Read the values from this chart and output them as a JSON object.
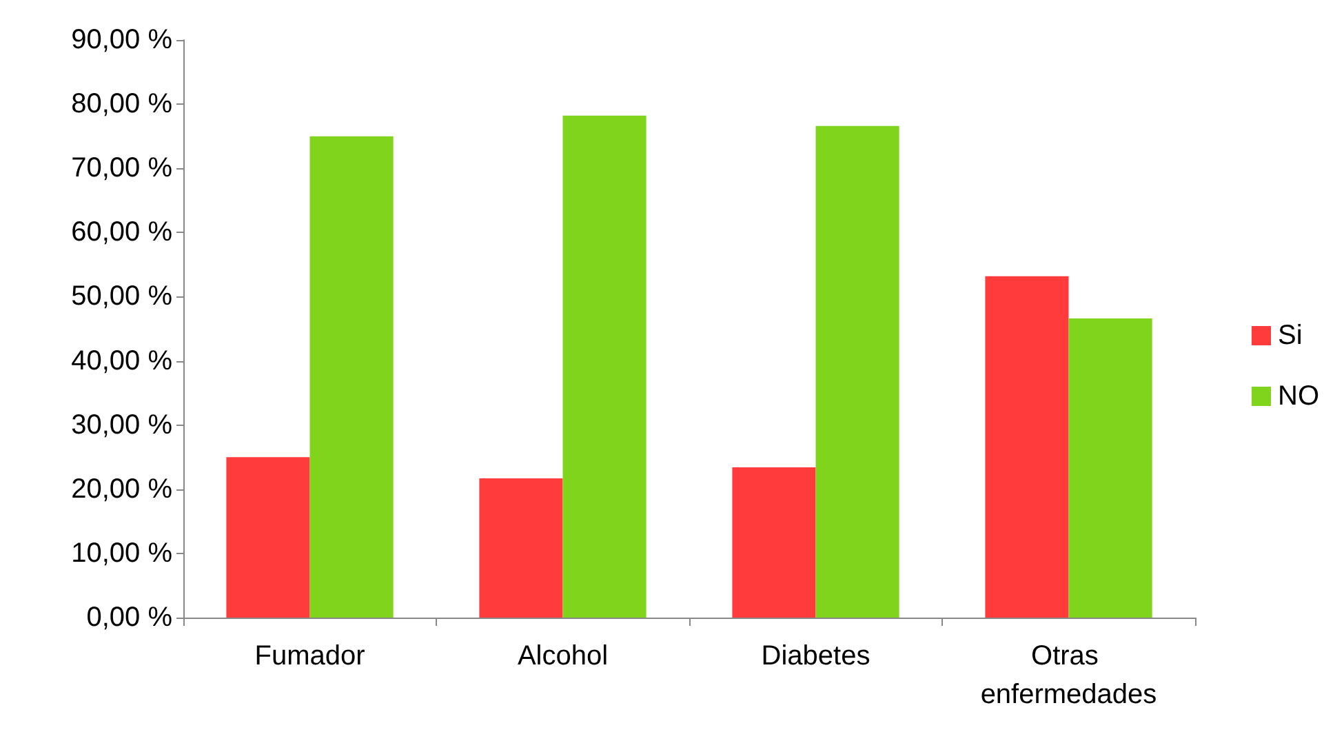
{
  "chart_data": {
    "type": "bar",
    "categories": [
      "Fumador",
      "Alcohol",
      "Diabetes",
      "Otras enfermedades"
    ],
    "series": [
      {
        "name": "Si",
        "color": "#ff3b3b",
        "values": [
          25.0,
          21.7,
          23.4,
          53.2
        ]
      },
      {
        "name": "NO",
        "color": "#80d41c",
        "values": [
          75.0,
          78.2,
          76.6,
          46.6
        ]
      }
    ],
    "ylim": [
      0,
      90
    ],
    "yticks": [
      {
        "value": 0,
        "label": "0,00 %"
      },
      {
        "value": 10,
        "label": "10,00 %"
      },
      {
        "value": 20,
        "label": "20,00 %"
      },
      {
        "value": 30,
        "label": "30,00 %"
      },
      {
        "value": 40,
        "label": "40,00 %"
      },
      {
        "value": 50,
        "label": "50,00 %"
      },
      {
        "value": 60,
        "label": "60,00 %"
      },
      {
        "value": 70,
        "label": "70,00 %"
      },
      {
        "value": 80,
        "label": "80,00 %"
      },
      {
        "value": 90,
        "label": "90,00 %"
      }
    ],
    "grid": false,
    "legend": "right"
  }
}
